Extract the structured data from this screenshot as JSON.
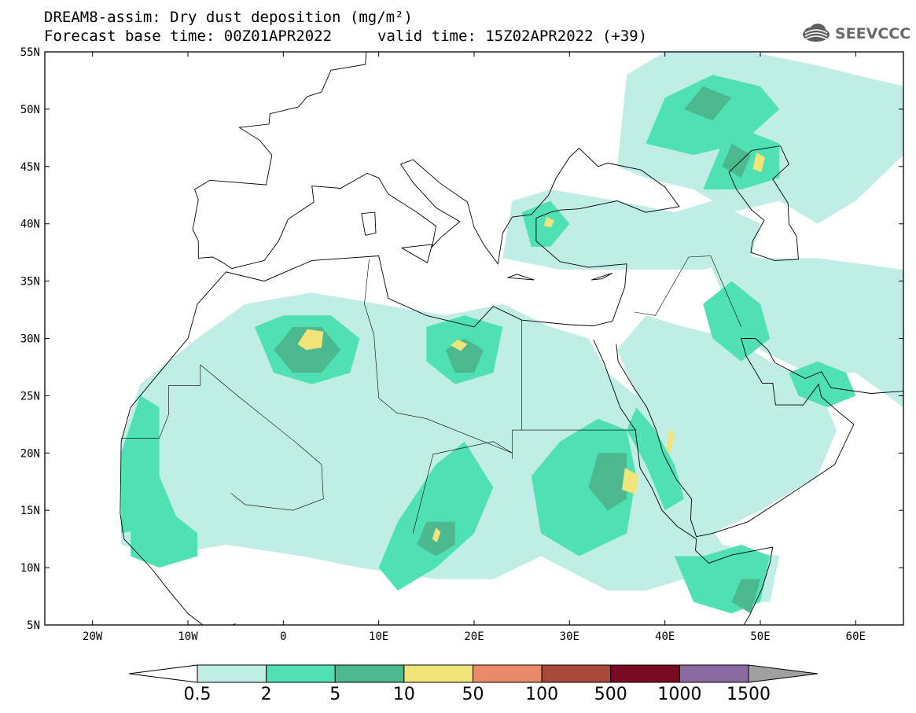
{
  "header": {
    "title_line1": "DREAM8-assim: Dry dust deposition (mg/m²)",
    "title_line2": "Forecast base time: 00Z01APR2022",
    "valid_time": "valid time: 15Z02APR2022 (+39)",
    "logo_text": "SEEVCCC",
    "logo_icon": "cloud-icon"
  },
  "map": {
    "lon_range": [
      -25,
      65
    ],
    "lat_range": [
      5,
      55
    ],
    "lat_labels": [
      "55N",
      "50N",
      "45N",
      "40N",
      "35N",
      "30N",
      "25N",
      "20N",
      "15N",
      "10N",
      "5N"
    ],
    "lat_values": [
      55,
      50,
      45,
      40,
      35,
      30,
      25,
      20,
      15,
      10,
      5
    ],
    "lon_labels": [
      "20W",
      "10W",
      "0",
      "10E",
      "20E",
      "30E",
      "40E",
      "50E",
      "60E"
    ],
    "lon_values": [
      -20,
      -10,
      0,
      10,
      20,
      30,
      40,
      50,
      60
    ]
  },
  "legend": {
    "levels": [
      "0.5",
      "2",
      "5",
      "10",
      "50",
      "100",
      "500",
      "1000",
      "1500"
    ],
    "colors": [
      "#c0eee6",
      "#4fe0b4",
      "#4cb890",
      "#f0e47a",
      "#e8896a",
      "#a84838",
      "#7a0a24",
      "#8a6aa0",
      "#a0a0a0"
    ],
    "under_color": "#ffffff"
  },
  "dust": [
    {
      "level": 0,
      "name": "sahara-sahel",
      "poly": [
        [
          -17,
          12
        ],
        [
          -17,
          21
        ],
        [
          -15,
          26
        ],
        [
          -9,
          30
        ],
        [
          -4,
          33
        ],
        [
          3,
          34
        ],
        [
          10,
          33
        ],
        [
          17,
          32
        ],
        [
          23,
          33
        ],
        [
          28,
          31
        ],
        [
          32,
          30
        ],
        [
          34,
          27
        ],
        [
          37,
          25
        ],
        [
          40,
          21
        ],
        [
          43,
          16
        ],
        [
          46,
          12
        ],
        [
          52,
          11
        ],
        [
          51,
          7
        ],
        [
          46,
          7
        ],
        [
          42,
          9
        ],
        [
          38,
          8
        ],
        [
          34,
          8
        ],
        [
          27,
          11
        ],
        [
          22,
          9
        ],
        [
          16,
          9
        ],
        [
          8,
          10
        ],
        [
          2,
          11
        ],
        [
          -6,
          12
        ],
        [
          -13,
          11
        ]
      ]
    },
    {
      "level": 0,
      "name": "arabia",
      "poly": [
        [
          35,
          29
        ],
        [
          38,
          32
        ],
        [
          42,
          31
        ],
        [
          47,
          30
        ],
        [
          51,
          28
        ],
        [
          56,
          26
        ],
        [
          58,
          22
        ],
        [
          56,
          18
        ],
        [
          50,
          15
        ],
        [
          45,
          13
        ],
        [
          43,
          16
        ],
        [
          40,
          20
        ],
        [
          37,
          25
        ]
      ]
    },
    {
      "level": 0,
      "name": "iran",
      "poly": [
        [
          44,
          38
        ],
        [
          50,
          37
        ],
        [
          56,
          37
        ],
        [
          65,
          36
        ],
        [
          65,
          24
        ],
        [
          60,
          27
        ],
        [
          55,
          27
        ],
        [
          50,
          29
        ],
        [
          48,
          31
        ],
        [
          46,
          34
        ]
      ]
    },
    {
      "level": 0,
      "name": "turkey-aegean",
      "poly": [
        [
          23,
          37
        ],
        [
          24,
          42
        ],
        [
          28,
          43
        ],
        [
          35,
          42
        ],
        [
          41,
          41
        ],
        [
          45,
          42
        ],
        [
          50,
          40
        ],
        [
          49,
          37
        ],
        [
          44,
          36
        ],
        [
          36,
          36
        ],
        [
          29,
          36
        ]
      ]
    },
    {
      "level": 0,
      "name": "russia-caspian",
      "poly": [
        [
          35,
          45
        ],
        [
          36,
          53
        ],
        [
          40,
          55
        ],
        [
          49,
          55
        ],
        [
          55,
          54
        ],
        [
          65,
          52
        ],
        [
          65,
          46
        ],
        [
          60,
          42
        ],
        [
          56,
          40
        ],
        [
          52,
          42
        ],
        [
          47,
          41
        ],
        [
          43,
          43
        ],
        [
          38,
          44
        ]
      ]
    },
    {
      "level": 1,
      "name": "west-sahara-coast",
      "poly": [
        [
          -17,
          13
        ],
        [
          -17,
          20
        ],
        [
          -15,
          25
        ],
        [
          -13,
          24
        ],
        [
          -13,
          18
        ],
        [
          -11,
          14
        ]
      ]
    },
    {
      "level": 1,
      "name": "sahel-west",
      "poly": [
        [
          -16,
          11
        ],
        [
          -16,
          14
        ],
        [
          -12,
          15
        ],
        [
          -9,
          13
        ],
        [
          -9,
          11
        ],
        [
          -13,
          10
        ]
      ]
    },
    {
      "level": 1,
      "name": "algeria-north",
      "poly": [
        [
          -3,
          31
        ],
        [
          0,
          32
        ],
        [
          5,
          32
        ],
        [
          8,
          30
        ],
        [
          7,
          27
        ],
        [
          3,
          26
        ],
        [
          -1,
          27
        ]
      ]
    },
    {
      "level": 1,
      "name": "libya",
      "poly": [
        [
          15,
          31
        ],
        [
          19,
          32
        ],
        [
          23,
          31
        ],
        [
          22,
          27
        ],
        [
          18,
          26
        ],
        [
          15,
          28
        ]
      ]
    },
    {
      "level": 1,
      "name": "chad-niger",
      "poly": [
        [
          10,
          10
        ],
        [
          12,
          14
        ],
        [
          16,
          19
        ],
        [
          19,
          21
        ],
        [
          22,
          17
        ],
        [
          20,
          13
        ],
        [
          16,
          10
        ],
        [
          12,
          8
        ]
      ]
    },
    {
      "level": 1,
      "name": "sudan",
      "poly": [
        [
          27,
          13
        ],
        [
          26,
          18
        ],
        [
          29,
          21
        ],
        [
          33,
          23
        ],
        [
          36,
          22
        ],
        [
          37,
          18
        ],
        [
          36,
          13
        ],
        [
          31,
          11
        ]
      ]
    },
    {
      "level": 1,
      "name": "red-sea-arabia-west",
      "poly": [
        [
          37,
          24
        ],
        [
          39,
          22
        ],
        [
          41,
          19
        ],
        [
          42,
          16
        ],
        [
          40,
          15
        ],
        [
          38,
          19
        ],
        [
          36,
          22
        ]
      ]
    },
    {
      "level": 1,
      "name": "horn-of-africa",
      "poly": [
        [
          41,
          11
        ],
        [
          44,
          11
        ],
        [
          48,
          12
        ],
        [
          51,
          11
        ],
        [
          50,
          7
        ],
        [
          47,
          6
        ],
        [
          43,
          7
        ]
      ]
    },
    {
      "level": 1,
      "name": "iraq-iran",
      "poly": [
        [
          44,
          33
        ],
        [
          47,
          35
        ],
        [
          50,
          33
        ],
        [
          51,
          30
        ],
        [
          48,
          28
        ],
        [
          45,
          30
        ]
      ]
    },
    {
      "level": 1,
      "name": "persian-gulf-east",
      "poly": [
        [
          53,
          27
        ],
        [
          56,
          28
        ],
        [
          59,
          27
        ],
        [
          60,
          25
        ],
        [
          57,
          24
        ],
        [
          54,
          25
        ]
      ]
    },
    {
      "level": 1,
      "name": "turkey-west",
      "poly": [
        [
          25,
          41
        ],
        [
          28,
          42
        ],
        [
          30,
          40
        ],
        [
          28,
          38
        ],
        [
          26,
          38
        ]
      ]
    },
    {
      "level": 1,
      "name": "caspian-north",
      "poly": [
        [
          44,
          43
        ],
        [
          46,
          47
        ],
        [
          49,
          48
        ],
        [
          52,
          47
        ],
        [
          52,
          44
        ],
        [
          48,
          43
        ]
      ]
    },
    {
      "level": 1,
      "name": "russia-center",
      "poly": [
        [
          38,
          47
        ],
        [
          40,
          51
        ],
        [
          45,
          53
        ],
        [
          50,
          52
        ],
        [
          52,
          50
        ],
        [
          48,
          47
        ],
        [
          43,
          46
        ]
      ]
    },
    {
      "level": 2,
      "name": "algeria-core",
      "poly": [
        [
          -1,
          29
        ],
        [
          1,
          31
        ],
        [
          4,
          31
        ],
        [
          6,
          29
        ],
        [
          4,
          27
        ],
        [
          1,
          27
        ]
      ]
    },
    {
      "level": 2,
      "name": "libya-core",
      "poly": [
        [
          17,
          29
        ],
        [
          19,
          30
        ],
        [
          21,
          29
        ],
        [
          20,
          27
        ],
        [
          18,
          27
        ]
      ]
    },
    {
      "level": 2,
      "name": "chad-core",
      "poly": [
        [
          14,
          12
        ],
        [
          15,
          14
        ],
        [
          18,
          14
        ],
        [
          18,
          12
        ],
        [
          16,
          11
        ]
      ]
    },
    {
      "level": 2,
      "name": "sudan-core",
      "poly": [
        [
          32,
          17
        ],
        [
          33,
          20
        ],
        [
          36,
          20
        ],
        [
          36,
          16
        ],
        [
          34,
          15
        ]
      ]
    },
    {
      "level": 2,
      "name": "caspian-core",
      "poly": [
        [
          46,
          45
        ],
        [
          47,
          47
        ],
        [
          49,
          46
        ],
        [
          48,
          44
        ]
      ]
    },
    {
      "level": 2,
      "name": "russia-core",
      "poly": [
        [
          42,
          50
        ],
        [
          44,
          52
        ],
        [
          47,
          51
        ],
        [
          45,
          49
        ]
      ]
    },
    {
      "level": 2,
      "name": "somalia-core",
      "poly": [
        [
          47,
          7
        ],
        [
          48,
          9
        ],
        [
          50,
          9
        ],
        [
          49,
          6
        ]
      ]
    },
    {
      "level": 3,
      "name": "algeria-hotspot",
      "poly": [
        [
          1.5,
          29.5
        ],
        [
          2.5,
          30.8
        ],
        [
          4.2,
          30.6
        ],
        [
          4.0,
          29.2
        ],
        [
          2.4,
          29.0
        ]
      ]
    },
    {
      "level": 3,
      "name": "libya-hotspot",
      "poly": [
        [
          17.5,
          29.4
        ],
        [
          18.3,
          29.9
        ],
        [
          19.3,
          29.5
        ],
        [
          18.6,
          28.9
        ]
      ]
    },
    {
      "level": 3,
      "name": "chad-hotspot",
      "poly": [
        [
          15.6,
          12.5
        ],
        [
          16.0,
          13.5
        ],
        [
          16.5,
          13.1
        ],
        [
          16.1,
          12.2
        ]
      ]
    },
    {
      "level": 3,
      "name": "sudan-hotspot",
      "poly": [
        [
          35.5,
          16.8
        ],
        [
          35.8,
          18.7
        ],
        [
          37.2,
          18.1
        ],
        [
          37.0,
          16.4
        ]
      ]
    },
    {
      "level": 3,
      "name": "red-sea-hotspot",
      "poly": [
        [
          40.1,
          20.4
        ],
        [
          40.5,
          22.2
        ],
        [
          41.0,
          21.5
        ],
        [
          40.6,
          20.0
        ]
      ]
    },
    {
      "level": 3,
      "name": "caspian-hotspot",
      "poly": [
        [
          49.2,
          44.8
        ],
        [
          49.6,
          46.2
        ],
        [
          50.5,
          45.8
        ],
        [
          50.1,
          44.5
        ]
      ]
    },
    {
      "level": 3,
      "name": "aegean-hotspot",
      "poly": [
        [
          27.3,
          39.8
        ],
        [
          27.6,
          40.6
        ],
        [
          28.4,
          40.3
        ],
        [
          28.1,
          39.7
        ]
      ]
    }
  ]
}
